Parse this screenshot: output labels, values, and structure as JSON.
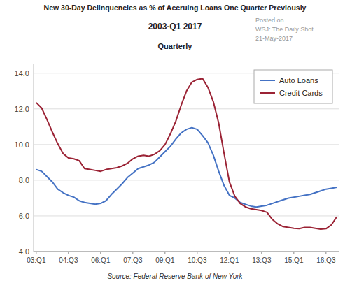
{
  "chart_data": {
    "type": "line",
    "title": "New 30-Day Delinquencies as % of Accruing Loans One Quarter Previously",
    "subtitle": "2003-Q1 2017",
    "annotations": [
      "Quarterly",
      "Posted on",
      "WSJ: The Daily Shot",
      "21-May-2017",
      "Source:  Federal Reserve Bank of New York"
    ],
    "categories": [
      "03:Q1",
      null,
      null,
      null,
      null,
      null,
      "04:Q3",
      null,
      null,
      null,
      null,
      null,
      "06:Q1",
      null,
      null,
      null,
      null,
      null,
      "07:Q3",
      null,
      null,
      null,
      null,
      null,
      "09:Q1",
      null,
      null,
      null,
      null,
      null,
      "10:Q3",
      null,
      null,
      null,
      null,
      null,
      "12:Q1",
      null,
      null,
      null,
      null,
      null,
      "13:Q3",
      null,
      null,
      null,
      null,
      null,
      "15:Q1",
      null,
      null,
      null,
      null,
      null,
      "16:Q3",
      null,
      null
    ],
    "series": [
      {
        "name": "Auto Loans",
        "color": "#4472C4",
        "values": [
          8.6,
          8.5,
          8.2,
          7.9,
          7.5,
          7.3,
          7.15,
          7.05,
          6.85,
          6.75,
          6.7,
          6.65,
          6.7,
          6.85,
          7.2,
          7.5,
          7.8,
          8.15,
          8.4,
          8.65,
          8.75,
          8.85,
          9.0,
          9.3,
          9.6,
          9.9,
          10.3,
          10.65,
          10.85,
          10.95,
          10.85,
          10.5,
          10.1,
          9.4,
          8.5,
          7.7,
          7.15,
          7.0,
          6.75,
          6.65,
          6.55,
          6.5,
          6.55,
          6.6,
          6.7,
          6.8,
          6.9,
          7.0,
          7.05,
          7.1,
          7.15,
          7.2,
          7.3,
          7.4,
          7.5,
          7.55,
          7.6
        ]
      },
      {
        "name": "Credit Cards",
        "color": "#9B2335",
        "values": [
          12.35,
          12.05,
          11.4,
          10.7,
          10.05,
          9.5,
          9.25,
          9.2,
          9.1,
          8.65,
          8.6,
          8.55,
          8.5,
          8.6,
          8.65,
          8.7,
          8.8,
          8.95,
          9.2,
          9.35,
          9.4,
          9.35,
          9.45,
          9.65,
          10.0,
          10.6,
          11.3,
          12.2,
          13.0,
          13.5,
          13.65,
          13.7,
          13.2,
          12.4,
          11.2,
          9.5,
          7.9,
          7.1,
          6.7,
          6.5,
          6.4,
          6.35,
          6.3,
          6.2,
          5.8,
          5.55,
          5.4,
          5.35,
          5.3,
          5.28,
          5.35,
          5.35,
          5.3,
          5.25,
          5.28,
          5.5,
          5.95
        ]
      }
    ],
    "ylim": [
      4.0,
      14.5
    ],
    "yticks": [
      {
        "value": 4.0,
        "label": "4.0"
      },
      {
        "value": 6.0,
        "label": "6.0"
      },
      {
        "value": 8.0,
        "label": "8.0"
      },
      {
        "value": 10.0,
        "label": "10.0"
      },
      {
        "value": 12.0,
        "label": "12.0"
      },
      {
        "value": 14.0,
        "label": "14.0"
      }
    ],
    "grid": true,
    "legend": "upper right"
  }
}
